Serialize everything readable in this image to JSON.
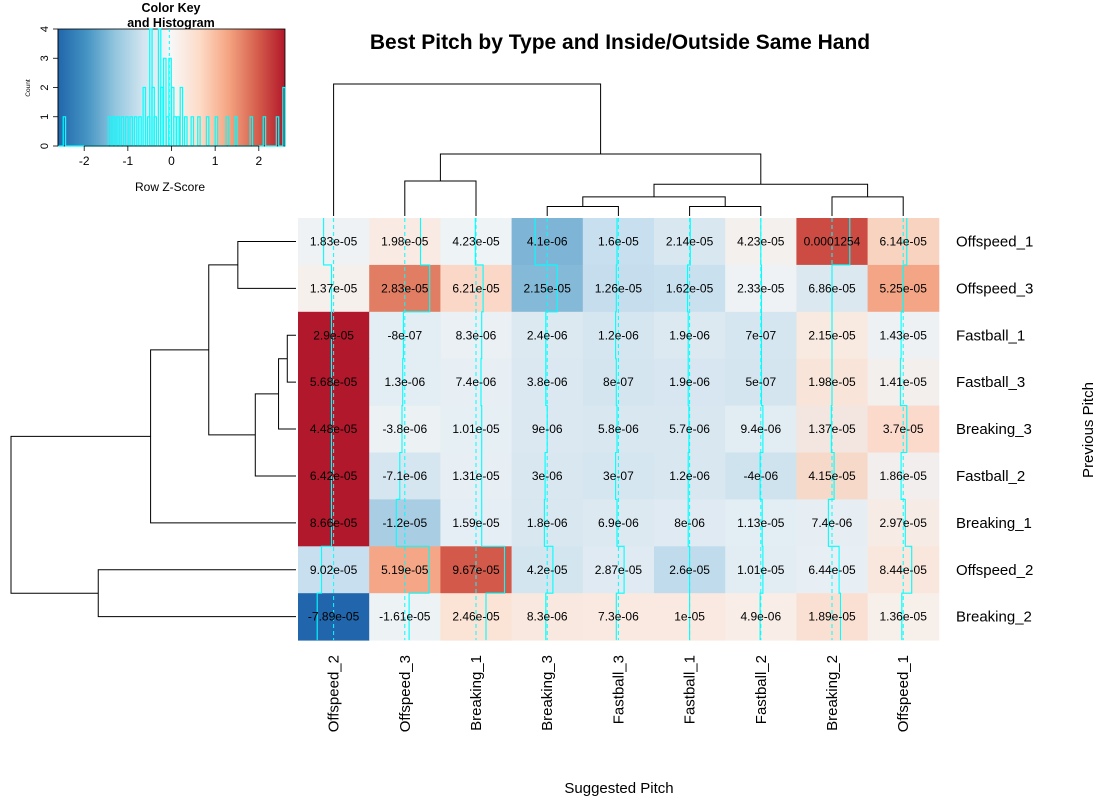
{
  "chart_data": {
    "type": "heatmap",
    "title": "Best Pitch by Type and Inside/Outside Same Hand",
    "xlabel": "Suggested Pitch",
    "ylabel": "Previous Pitch",
    "columns": [
      "Offspeed_2",
      "Offspeed_3",
      "Breaking_1",
      "Breaking_3",
      "Fastball_3",
      "Fastball_1",
      "Fastball_2",
      "Breaking_2",
      "Offspeed_1"
    ],
    "rows": [
      "Offspeed_1",
      "Offspeed_3",
      "Fastball_1",
      "Fastball_3",
      "Breaking_3",
      "Fastball_2",
      "Breaking_1",
      "Offspeed_2",
      "Breaking_2"
    ],
    "cell_labels": [
      [
        "1.83e-05",
        "1.98e-05",
        "4.23e-05",
        "4.1e-06",
        "1.6e-05",
        "2.14e-05",
        "4.23e-05",
        "0.0001254",
        "6.14e-05"
      ],
      [
        "1.37e-05",
        "2.83e-05",
        "6.21e-05",
        "2.15e-05",
        "1.26e-05",
        "1.62e-05",
        "2.33e-05",
        "6.86e-05",
        "5.25e-05"
      ],
      [
        "2.9e-05",
        "-8e-07",
        "8.3e-06",
        "2.4e-06",
        "1.2e-06",
        "1.9e-06",
        "7e-07",
        "2.15e-05",
        "1.43e-05"
      ],
      [
        "5.68e-05",
        "1.3e-06",
        "7.4e-06",
        "3.8e-06",
        "8e-07",
        "1.9e-06",
        "5e-07",
        "1.98e-05",
        "1.41e-05"
      ],
      [
        "4.48e-05",
        "-3.8e-06",
        "1.01e-05",
        "9e-06",
        "5.8e-06",
        "5.7e-06",
        "9.4e-06",
        "1.37e-05",
        "3.7e-05"
      ],
      [
        "6.42e-05",
        "-7.1e-06",
        "1.31e-05",
        "3e-06",
        "3e-07",
        "1.2e-06",
        "-4e-06",
        "4.15e-05",
        "1.86e-05"
      ],
      [
        "8.66e-05",
        "-1.2e-05",
        "1.59e-05",
        "1.8e-06",
        "6.9e-06",
        "8e-06",
        "1.13e-05",
        "7.4e-06",
        "2.97e-05"
      ],
      [
        "9.02e-05",
        "5.19e-05",
        "9.67e-05",
        "4.2e-05",
        "2.87e-05",
        "2.6e-05",
        "1.01e-05",
        "6.44e-05",
        "8.44e-05"
      ],
      [
        "-7.89e-05",
        "-1.61e-05",
        "2.46e-05",
        "8.3e-06",
        "7.3e-06",
        "1e-05",
        "4.9e-06",
        "1.89e-05",
        "1.36e-05"
      ]
    ],
    "cell_colors": [
      [
        "#eef2f5",
        "#f9ebe4",
        "#eef3f6",
        "#7eb5d6",
        "#c7dfee",
        "#d9e7f0",
        "#f4f0ee",
        "#cc4c44",
        "#f8d4c0"
      ],
      [
        "#f6f0ed",
        "#e07d63",
        "#fad7c6",
        "#85b9d8",
        "#c5dded",
        "#c9e0ee",
        "#eef2f5",
        "#dbe8f0",
        "#f4a586"
      ],
      [
        "#b2182b",
        "#e2edf4",
        "#eaf0f4",
        "#dce9f1",
        "#d6e6f0",
        "#dce9f1",
        "#d6e6f0",
        "#f8e9e1",
        "#edf1f4"
      ],
      [
        "#b2182b",
        "#e2edf4",
        "#e7eff4",
        "#dbe8f1",
        "#d4e5ef",
        "#d7e6f0",
        "#d4e5ef",
        "#f8e4d9",
        "#f3efed"
      ],
      [
        "#b2182b",
        "#ecf1f4",
        "#e6eff4",
        "#dbe8f1",
        "#d9e7f0",
        "#d8e7f0",
        "#e1ecf3",
        "#f3e6e0",
        "#fbdacb"
      ],
      [
        "#b2182b",
        "#d5e6f0",
        "#e7eff4",
        "#d8e7f0",
        "#d6e6f0",
        "#d8e7f0",
        "#cfe3ef",
        "#f7d9c9",
        "#f2eeed"
      ],
      [
        "#b2182b",
        "#a9cde3",
        "#e5eef4",
        "#d9e7f0",
        "#dce9f1",
        "#dfeaf2",
        "#e2edf4",
        "#e6eef3",
        "#f6ebe5"
      ],
      [
        "#c7dfee",
        "#f4a687",
        "#d35a4a",
        "#d3e5ef",
        "#dfeaf2",
        "#c0dbec",
        "#e1ecf3",
        "#e8eff4",
        "#f9e6dc"
      ],
      [
        "#2166ac",
        "#edf2f5",
        "#fbe3d6",
        "#f9e8df",
        "#f9e9e0",
        "#fae9e0",
        "#f9ede7",
        "#fae0d2",
        "#f7efea"
      ]
    ],
    "trace_fractions": [
      [
        0.36,
        0.72,
        0.49,
        0.33,
        0.48,
        0.51,
        0.5,
        0.75,
        0.55
      ],
      [
        0.47,
        0.85,
        0.6,
        0.64,
        0.47,
        0.47,
        0.51,
        0.5,
        0.5
      ],
      [
        0.47,
        0.48,
        0.58,
        0.48,
        0.46,
        0.48,
        0.51,
        0.5,
        0.47
      ],
      [
        0.47,
        0.47,
        0.57,
        0.48,
        0.47,
        0.48,
        0.51,
        0.5,
        0.46
      ],
      [
        0.47,
        0.46,
        0.58,
        0.5,
        0.48,
        0.49,
        0.53,
        0.49,
        0.55
      ],
      [
        0.47,
        0.43,
        0.58,
        0.47,
        0.46,
        0.48,
        0.49,
        0.53,
        0.47
      ],
      [
        0.47,
        0.38,
        0.58,
        0.46,
        0.48,
        0.48,
        0.52,
        0.45,
        0.53
      ],
      [
        0.33,
        0.84,
        0.9,
        0.58,
        0.58,
        0.5,
        0.53,
        0.6,
        0.62
      ],
      [
        0.27,
        0.56,
        0.64,
        0.48,
        0.47,
        0.5,
        0.49,
        0.62,
        0.48
      ]
    ],
    "col_dendrogram": {
      "leaf_order": [
        0,
        1,
        2,
        3,
        4,
        5,
        6,
        7,
        8
      ],
      "merges": [
        {
          "a": "L3",
          "b": "L4",
          "h": 0.06
        },
        {
          "a": "L5",
          "b": "L6",
          "h": 0.06
        },
        {
          "a": "L7",
          "b": "L8",
          "h": 0.12
        },
        {
          "a": "M0",
          "b": "M1",
          "h": 0.12
        },
        {
          "a": "L1",
          "b": "L2",
          "h": 0.22
        },
        {
          "a": "M3",
          "b": "M2",
          "h": 0.2
        },
        {
          "a": "M4",
          "b": "M5",
          "h": 0.39
        },
        {
          "a": "L0",
          "b": "M6",
          "h": 0.83
        }
      ]
    },
    "row_dendrogram": {
      "merges": [
        {
          "a": "L2",
          "b": "L3",
          "h": 0.03
        },
        {
          "a": "M0",
          "b": "L4",
          "h": 0.06
        },
        {
          "a": "M1",
          "b": "L5",
          "h": 0.14
        },
        {
          "a": "L0",
          "b": "L1",
          "h": 0.2
        },
        {
          "a": "M3",
          "b": "M2",
          "h": 0.3
        },
        {
          "a": "M4",
          "b": "L6",
          "h": 0.5
        },
        {
          "a": "L7",
          "b": "L8",
          "h": 0.68
        },
        {
          "a": "M5",
          "b": "M6",
          "h": 0.98
        }
      ]
    },
    "color_key": {
      "title_line1": "Color Key",
      "title_line2": "and Histogram",
      "xlabel": "Row Z-Score",
      "ylabel": "Count",
      "xlim": [
        -2.6,
        2.6
      ],
      "ylim": [
        0,
        4
      ],
      "x_ticks": [
        "-2",
        "-1",
        "0",
        "1",
        "2"
      ],
      "y_ticks": [
        "0",
        "1",
        "2",
        "3",
        "4"
      ],
      "gradient_colors": [
        "#2166ac",
        "#4393c3",
        "#92c5de",
        "#d1e5f0",
        "#f7f7f7",
        "#fddbc7",
        "#f4a582",
        "#d6604d",
        "#b2182b"
      ],
      "histogram": {
        "mean": -0.05,
        "bins": [
          {
            "x": -2.48,
            "c": 1
          },
          {
            "x": -1.45,
            "c": 1
          },
          {
            "x": -1.35,
            "c": 1
          },
          {
            "x": -1.25,
            "c": 1
          },
          {
            "x": -1.15,
            "c": 1
          },
          {
            "x": -1.05,
            "c": 1
          },
          {
            "x": -0.95,
            "c": 1
          },
          {
            "x": -0.85,
            "c": 1
          },
          {
            "x": -0.75,
            "c": 1
          },
          {
            "x": -0.65,
            "c": 2
          },
          {
            "x": -0.55,
            "c": 1
          },
          {
            "x": -0.5,
            "c": 4
          },
          {
            "x": -0.45,
            "c": 2
          },
          {
            "x": -0.4,
            "c": 1
          },
          {
            "x": -0.3,
            "c": 4
          },
          {
            "x": -0.25,
            "c": 2
          },
          {
            "x": -0.18,
            "c": 3
          },
          {
            "x": -0.12,
            "c": 1
          },
          {
            "x": -0.06,
            "c": 3
          },
          {
            "x": 0.0,
            "c": 2
          },
          {
            "x": 0.05,
            "c": 1
          },
          {
            "x": 0.12,
            "c": 1
          },
          {
            "x": 0.2,
            "c": 2
          },
          {
            "x": 0.3,
            "c": 1
          },
          {
            "x": 0.45,
            "c": 1
          },
          {
            "x": 0.6,
            "c": 1
          },
          {
            "x": 0.8,
            "c": 1
          },
          {
            "x": 1.0,
            "c": 1
          },
          {
            "x": 1.25,
            "c": 1
          },
          {
            "x": 1.45,
            "c": 1
          },
          {
            "x": 1.8,
            "c": 1
          },
          {
            "x": 2.1,
            "c": 1
          },
          {
            "x": 2.4,
            "c": 1
          },
          {
            "x": 2.55,
            "c": 2
          }
        ]
      }
    },
    "colors": {
      "trace": "#00ffff",
      "dendrogram": "#000000"
    }
  }
}
